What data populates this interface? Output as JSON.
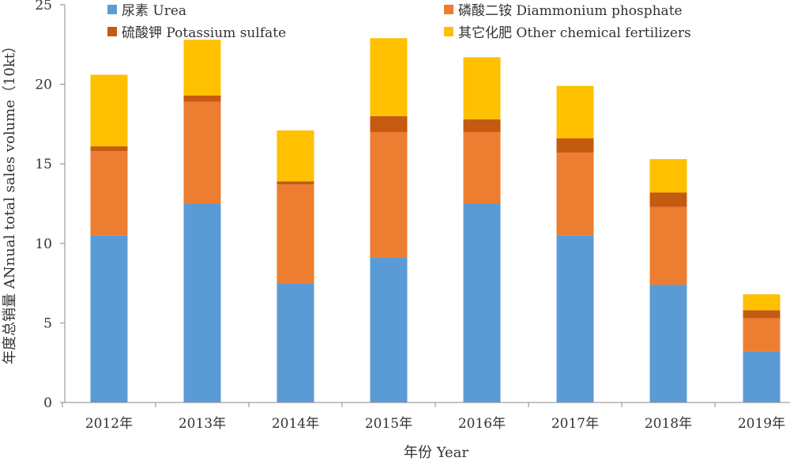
{
  "chart_data": {
    "type": "bar",
    "stacked": true,
    "title": "",
    "xlabel": "年份 Year",
    "ylabel": "年度总销量 ANnual total sales volume（10kt）",
    "ylim": [
      0,
      25
    ],
    "yticks": [
      0,
      5,
      10,
      15,
      20,
      25
    ],
    "grid": false,
    "legend_position": "top",
    "categories": [
      "2012年",
      "2013年",
      "2014年",
      "2015年",
      "2016年",
      "2017年",
      "2018年",
      "2019年"
    ],
    "series": [
      {
        "name": "尿素 Urea",
        "color": "#5B9BD5",
        "values": [
          10.5,
          12.5,
          7.5,
          9.1,
          12.5,
          10.5,
          7.4,
          3.2
        ]
      },
      {
        "name": "磷酸二铵 Diammonium phosphate",
        "color": "#ED7D31",
        "values": [
          5.3,
          6.4,
          6.2,
          7.9,
          4.5,
          5.2,
          4.9,
          2.1
        ]
      },
      {
        "name": "硫酸钾 Potassium sulfate",
        "color": "#C55A11",
        "values": [
          0.3,
          0.4,
          0.2,
          1.0,
          0.8,
          0.9,
          0.9,
          0.5
        ]
      },
      {
        "name": "其它化肥 Other chemical fertilizers",
        "color": "#FFC000",
        "values": [
          4.5,
          3.5,
          3.2,
          4.9,
          3.9,
          3.3,
          2.1,
          1.0
        ]
      }
    ]
  }
}
